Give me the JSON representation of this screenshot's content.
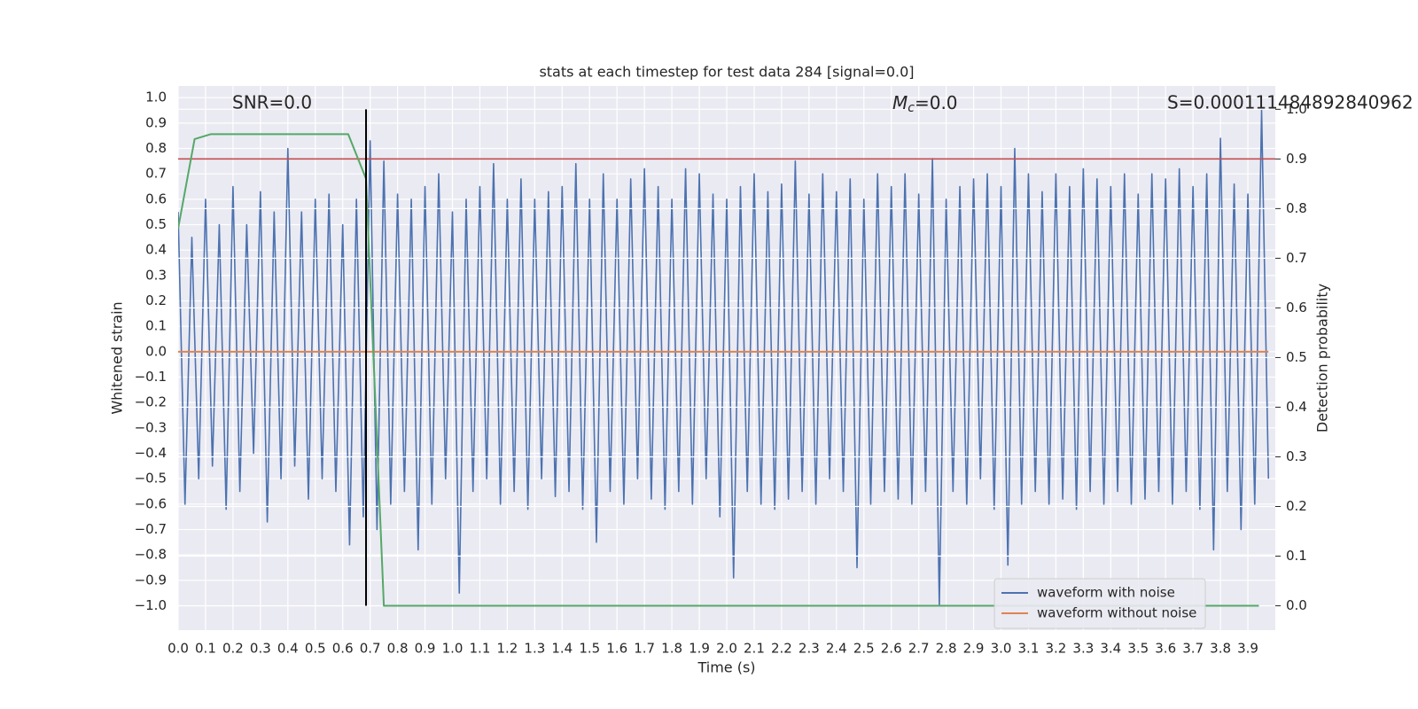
{
  "chart_data": {
    "type": "line",
    "title": "stats at each timestep for test data 284 [signal=0.0]",
    "xlabel": "Time (s)",
    "ylabel": "Whitened strain",
    "y2label": "Detection probability",
    "xlim": [
      0,
      4.0
    ],
    "ylim": [
      -1.096,
      1.046
    ],
    "y2lim": [
      -0.049,
      1.047
    ],
    "grid": true,
    "xticks": [
      {
        "value": 0,
        "label": "0.0"
      },
      0.1,
      0.2,
      0.3,
      0.4,
      0.5,
      0.6,
      0.7,
      0.8,
      0.9,
      {
        "value": 1,
        "label": "1.0"
      },
      1.1,
      1.2,
      1.3,
      1.4,
      1.5,
      1.6,
      1.7,
      1.8,
      1.9,
      {
        "value": 2,
        "label": "2.0"
      },
      2.1,
      2.2,
      2.3,
      2.4,
      2.5,
      2.6,
      2.7,
      2.8,
      2.9,
      {
        "value": 3,
        "label": "3.0"
      },
      3.1,
      3.2,
      3.3,
      3.4,
      3.5,
      3.6,
      3.7,
      3.8,
      3.9
    ],
    "yticks": [
      {
        "value": -1,
        "label": "−1.0"
      },
      {
        "value": -0.9,
        "label": "−0.9"
      },
      {
        "value": -0.8,
        "label": "−0.8"
      },
      {
        "value": -0.7,
        "label": "−0.7"
      },
      {
        "value": -0.6,
        "label": "−0.6"
      },
      {
        "value": -0.5,
        "label": "−0.5"
      },
      {
        "value": -0.4,
        "label": "−0.4"
      },
      {
        "value": -0.3,
        "label": "−0.3"
      },
      {
        "value": -0.2,
        "label": "−0.2"
      },
      {
        "value": -0.1,
        "label": "−0.1"
      },
      {
        "value": 0,
        "label": "0.0"
      },
      0.1,
      0.2,
      0.3,
      0.4,
      0.5,
      0.6,
      0.7,
      0.8,
      0.9,
      {
        "value": 1,
        "label": "1.0"
      }
    ],
    "y2ticks": [
      {
        "value": 0,
        "label": "0.0"
      },
      0.1,
      0.2,
      0.3,
      0.4,
      0.5,
      0.6,
      0.7,
      0.8,
      0.9,
      {
        "value": 1,
        "label": "1.0"
      }
    ],
    "series": [
      {
        "name": "waveform with noise",
        "color": "#4c72b0",
        "x": [
          0,
          0.025,
          0.05,
          0.075,
          0.1,
          0.125,
          0.15,
          0.175,
          0.2,
          0.225,
          0.25,
          0.275,
          0.3,
          0.325,
          0.35,
          0.375,
          0.4,
          0.425,
          0.45,
          0.475,
          0.5,
          0.525,
          0.55,
          0.575,
          0.6,
          0.625,
          0.65,
          0.675,
          0.7,
          0.725,
          0.75,
          0.775,
          0.8,
          0.825,
          0.85,
          0.875,
          0.9,
          0.925,
          0.95,
          0.975,
          1,
          1.025,
          1.05,
          1.075,
          1.1,
          1.125,
          1.15,
          1.175,
          1.2,
          1.225,
          1.25,
          1.275,
          1.3,
          1.325,
          1.35,
          1.375,
          1.4,
          1.425,
          1.45,
          1.475,
          1.5,
          1.525,
          1.55,
          1.575,
          1.6,
          1.625,
          1.65,
          1.675,
          1.7,
          1.725,
          1.75,
          1.775,
          1.8,
          1.825,
          1.85,
          1.875,
          1.9,
          1.925,
          1.95,
          1.975,
          2,
          2.025,
          2.05,
          2.075,
          2.1,
          2.125,
          2.15,
          2.175,
          2.2,
          2.225,
          2.25,
          2.275,
          2.3,
          2.325,
          2.35,
          2.375,
          2.4,
          2.425,
          2.45,
          2.475,
          2.5,
          2.525,
          2.55,
          2.575,
          2.6,
          2.625,
          2.65,
          2.675,
          2.7,
          2.725,
          2.75,
          2.775,
          2.8,
          2.825,
          2.85,
          2.875,
          2.9,
          2.925,
          2.95,
          2.975,
          3,
          3.025,
          3.05,
          3.075,
          3.1,
          3.125,
          3.15,
          3.175,
          3.2,
          3.225,
          3.25,
          3.275,
          3.3,
          3.325,
          3.35,
          3.375,
          3.4,
          3.425,
          3.45,
          3.475,
          3.5,
          3.525,
          3.55,
          3.575,
          3.6,
          3.625,
          3.65,
          3.675,
          3.7,
          3.725,
          3.75,
          3.775,
          3.8,
          3.825,
          3.85,
          3.875,
          3.9,
          3.925,
          3.95,
          3.975
        ],
        "values": [
          0.55,
          -0.6,
          0.45,
          -0.5,
          0.6,
          -0.45,
          0.5,
          -0.62,
          0.65,
          -0.55,
          0.5,
          -0.4,
          0.63,
          -0.67,
          0.55,
          -0.5,
          0.8,
          -0.45,
          0.55,
          -0.58,
          0.6,
          -0.5,
          0.62,
          -0.55,
          0.5,
          -0.76,
          0.6,
          -0.65,
          0.83,
          -0.7,
          0.75,
          -0.6,
          0.62,
          -0.55,
          0.6,
          -0.78,
          0.65,
          -0.6,
          0.7,
          -0.5,
          0.55,
          -0.95,
          0.6,
          -0.55,
          0.65,
          -0.5,
          0.74,
          -0.6,
          0.6,
          -0.55,
          0.68,
          -0.62,
          0.6,
          -0.5,
          0.63,
          -0.57,
          0.65,
          -0.55,
          0.74,
          -0.62,
          0.6,
          -0.75,
          0.7,
          -0.55,
          0.6,
          -0.6,
          0.68,
          -0.5,
          0.72,
          -0.58,
          0.65,
          -0.62,
          0.6,
          -0.55,
          0.72,
          -0.6,
          0.7,
          -0.5,
          0.62,
          -0.65,
          0.6,
          -0.89,
          0.65,
          -0.55,
          0.7,
          -0.6,
          0.63,
          -0.62,
          0.66,
          -0.58,
          0.75,
          -0.55,
          0.62,
          -0.6,
          0.7,
          -0.5,
          0.63,
          -0.55,
          0.68,
          -0.85,
          0.6,
          -0.6,
          0.7,
          -0.55,
          0.65,
          -0.58,
          0.7,
          -0.6,
          0.62,
          -0.55,
          0.76,
          -1.0,
          0.6,
          -0.55,
          0.65,
          -0.6,
          0.68,
          -0.5,
          0.7,
          -0.62,
          0.65,
          -0.84,
          0.8,
          -0.6,
          0.7,
          -0.55,
          0.63,
          -0.6,
          0.7,
          -0.58,
          0.65,
          -0.62,
          0.72,
          -0.55,
          0.68,
          -0.6,
          0.65,
          -0.55,
          0.7,
          -0.6,
          0.62,
          -0.58,
          0.7,
          -0.55,
          0.68,
          -0.6,
          0.72,
          -0.55,
          0.65,
          -0.62,
          0.7,
          -0.78,
          0.84,
          -0.55,
          0.66,
          -0.7,
          0.62,
          -0.6,
          0.95,
          -0.5
        ]
      },
      {
        "name": "waveform without noise",
        "color": "#dd8452",
        "x": [
          0,
          3.975
        ],
        "values": [
          0,
          0
        ]
      },
      {
        "axis": "y2",
        "color": "#55a868",
        "x": [
          0,
          0.06,
          0.12,
          0.62,
          0.685,
          0.75,
          3.94
        ],
        "values": [
          0.76,
          0.94,
          0.95,
          0.95,
          0.86,
          0,
          0
        ]
      }
    ],
    "threshold": {
      "value": 0.9,
      "axis": "y2",
      "color": "#c44e52"
    },
    "marker": {
      "x": 0.685,
      "y2": [
        0,
        1
      ],
      "color": "#000000"
    },
    "annotations": [
      "SNR=0.0",
      "M_c=0.0",
      "S=0.000111484892840962"
    ],
    "legend": "lower right"
  }
}
